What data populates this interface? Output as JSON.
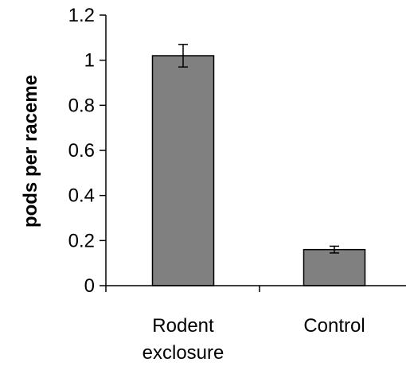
{
  "chart_data": {
    "type": "bar",
    "categories": [
      [
        "Rodent",
        "exclosure"
      ],
      [
        "Control"
      ]
    ],
    "values": [
      1.02,
      0.16
    ],
    "errors": [
      0.05,
      0.015
    ],
    "ylabel": "pods per raceme",
    "ylim": [
      0,
      1.2
    ],
    "yticks": [
      "0",
      "0.2",
      "0.4",
      "0.6",
      "0.8",
      "1",
      "1.2"
    ],
    "ytick_values": [
      0,
      0.2,
      0.4,
      0.6,
      0.8,
      1.0,
      1.2
    ],
    "grid": false,
    "legend": "none",
    "colors": {
      "bar_fill": "#808080",
      "bar_stroke": "#000000",
      "axis": "#000000"
    }
  }
}
